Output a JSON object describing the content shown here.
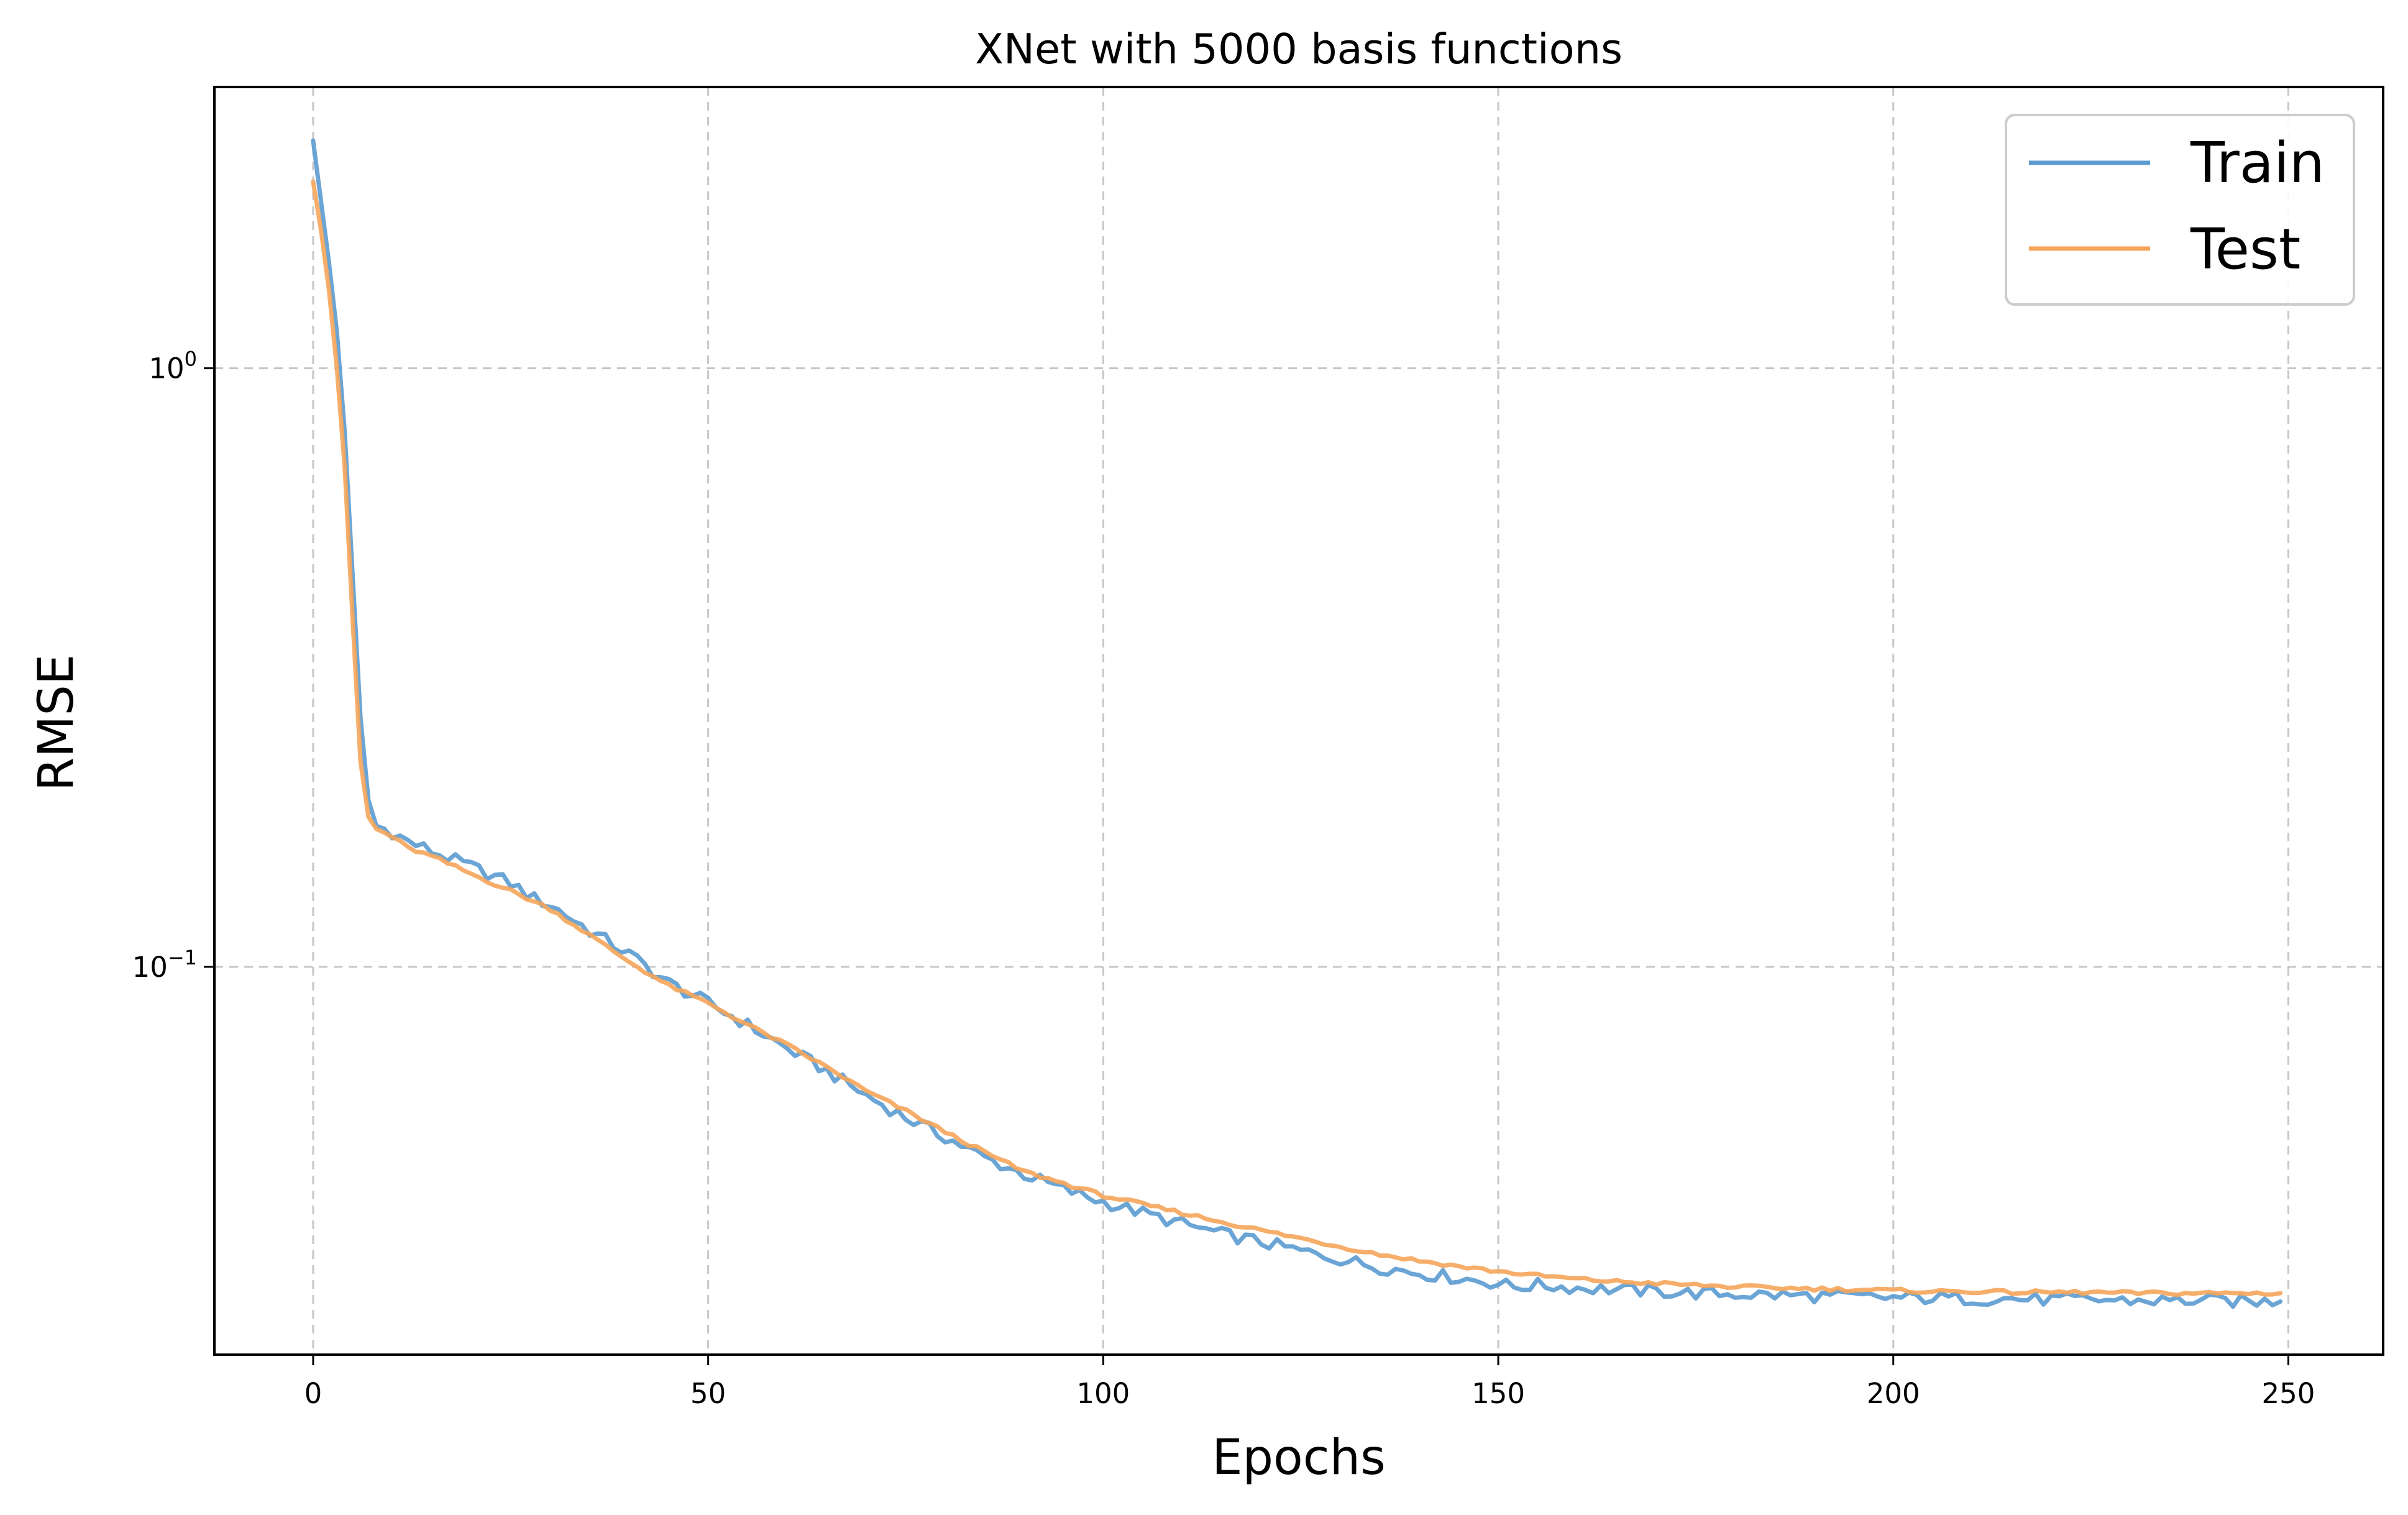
{
  "chart_data": {
    "type": "line",
    "title": "XNet with 5000 basis functions",
    "xlabel": "Epochs",
    "ylabel": "RMSE",
    "yscale": "log",
    "xlim": [
      -12.5,
      262
    ],
    "ylim": [
      0.0225,
      2.95
    ],
    "xticks": [
      0,
      50,
      100,
      150,
      200,
      250
    ],
    "xtick_labels": [
      "0",
      "50",
      "100",
      "150",
      "200",
      "250"
    ],
    "yticks": [
      1,
      0.1
    ],
    "ytick_labels": [
      {
        "base": "10",
        "exp": "0"
      },
      {
        "base": "10",
        "exp": "−1"
      }
    ],
    "grid": true,
    "legend_position": "top-right",
    "series": [
      {
        "name": "Train",
        "color": "#5b9bd0",
        "points": [
          [
            0,
            2.4
          ],
          [
            1,
            1.9
          ],
          [
            2,
            1.5
          ],
          [
            3,
            1.15
          ],
          [
            4,
            0.78
          ],
          [
            5,
            0.45
          ],
          [
            6,
            0.26
          ],
          [
            7,
            0.19
          ],
          [
            8,
            0.172
          ],
          [
            10,
            0.168
          ],
          [
            12,
            0.162
          ],
          [
            15,
            0.156
          ],
          [
            20,
            0.147
          ],
          [
            25,
            0.138
          ],
          [
            28,
            0.13
          ],
          [
            30,
            0.127
          ],
          [
            35,
            0.115
          ],
          [
            40,
            0.105
          ],
          [
            45,
            0.094
          ],
          [
            50,
            0.087
          ],
          [
            55,
            0.08
          ],
          [
            60,
            0.073
          ],
          [
            65,
            0.067
          ],
          [
            70,
            0.061
          ],
          [
            75,
            0.056
          ],
          [
            80,
            0.052
          ],
          [
            85,
            0.048
          ],
          [
            90,
            0.045
          ],
          [
            95,
            0.0425
          ],
          [
            100,
            0.0405
          ],
          [
            105,
            0.0388
          ],
          [
            110,
            0.0372
          ],
          [
            115,
            0.0358
          ],
          [
            120,
            0.0347
          ],
          [
            125,
            0.0335
          ],
          [
            130,
            0.0325
          ],
          [
            135,
            0.0315
          ],
          [
            140,
            0.0308
          ],
          [
            145,
            0.0302
          ],
          [
            150,
            0.0296
          ],
          [
            152,
            0.0292
          ],
          [
            155,
            0.0294
          ],
          [
            160,
            0.0291
          ],
          [
            165,
            0.0289
          ],
          [
            170,
            0.0287
          ],
          [
            175,
            0.0285
          ],
          [
            180,
            0.0284
          ],
          [
            185,
            0.0283
          ],
          [
            190,
            0.0282
          ],
          [
            195,
            0.0281
          ],
          [
            200,
            0.028
          ],
          [
            205,
            0.028
          ],
          [
            210,
            0.0279
          ],
          [
            215,
            0.0279
          ],
          [
            220,
            0.0278
          ],
          [
            225,
            0.0278
          ],
          [
            230,
            0.0277
          ],
          [
            235,
            0.0277
          ],
          [
            240,
            0.0277
          ],
          [
            245,
            0.0276
          ],
          [
            249,
            0.0276
          ]
        ]
      },
      {
        "name": "Test",
        "color": "#f5a55a",
        "points": [
          [
            0,
            2.05
          ],
          [
            1,
            1.7
          ],
          [
            2,
            1.35
          ],
          [
            3,
            1.0
          ],
          [
            4,
            0.68
          ],
          [
            5,
            0.38
          ],
          [
            6,
            0.22
          ],
          [
            7,
            0.178
          ],
          [
            8,
            0.17
          ],
          [
            10,
            0.165
          ],
          [
            12,
            0.158
          ],
          [
            15,
            0.153
          ],
          [
            20,
            0.143
          ],
          [
            25,
            0.134
          ],
          [
            30,
            0.125
          ],
          [
            35,
            0.113
          ],
          [
            40,
            0.102
          ],
          [
            45,
            0.093
          ],
          [
            50,
            0.087
          ],
          [
            55,
            0.08
          ],
          [
            60,
            0.074
          ],
          [
            65,
            0.068
          ],
          [
            70,
            0.062
          ],
          [
            75,
            0.0575
          ],
          [
            80,
            0.053
          ],
          [
            85,
            0.049
          ],
          [
            90,
            0.0455
          ],
          [
            95,
            0.0435
          ],
          [
            100,
            0.0415
          ],
          [
            105,
            0.0401
          ],
          [
            110,
            0.0388
          ],
          [
            115,
            0.0375
          ],
          [
            120,
            0.0363
          ],
          [
            125,
            0.0352
          ],
          [
            130,
            0.0341
          ],
          [
            135,
            0.0331
          ],
          [
            140,
            0.0323
          ],
          [
            145,
            0.0316
          ],
          [
            150,
            0.031
          ],
          [
            155,
            0.0305
          ],
          [
            160,
            0.0301
          ],
          [
            165,
            0.0298
          ],
          [
            170,
            0.0296
          ],
          [
            175,
            0.0294
          ],
          [
            180,
            0.0292
          ],
          [
            185,
            0.0291
          ],
          [
            190,
            0.029
          ],
          [
            195,
            0.0289
          ],
          [
            200,
            0.0288
          ],
          [
            205,
            0.0287
          ],
          [
            210,
            0.0287
          ],
          [
            215,
            0.0286
          ],
          [
            220,
            0.0286
          ],
          [
            225,
            0.0286
          ],
          [
            230,
            0.0285
          ],
          [
            235,
            0.0285
          ],
          [
            240,
            0.0285
          ],
          [
            245,
            0.0285
          ],
          [
            249,
            0.0285
          ]
        ]
      }
    ]
  }
}
